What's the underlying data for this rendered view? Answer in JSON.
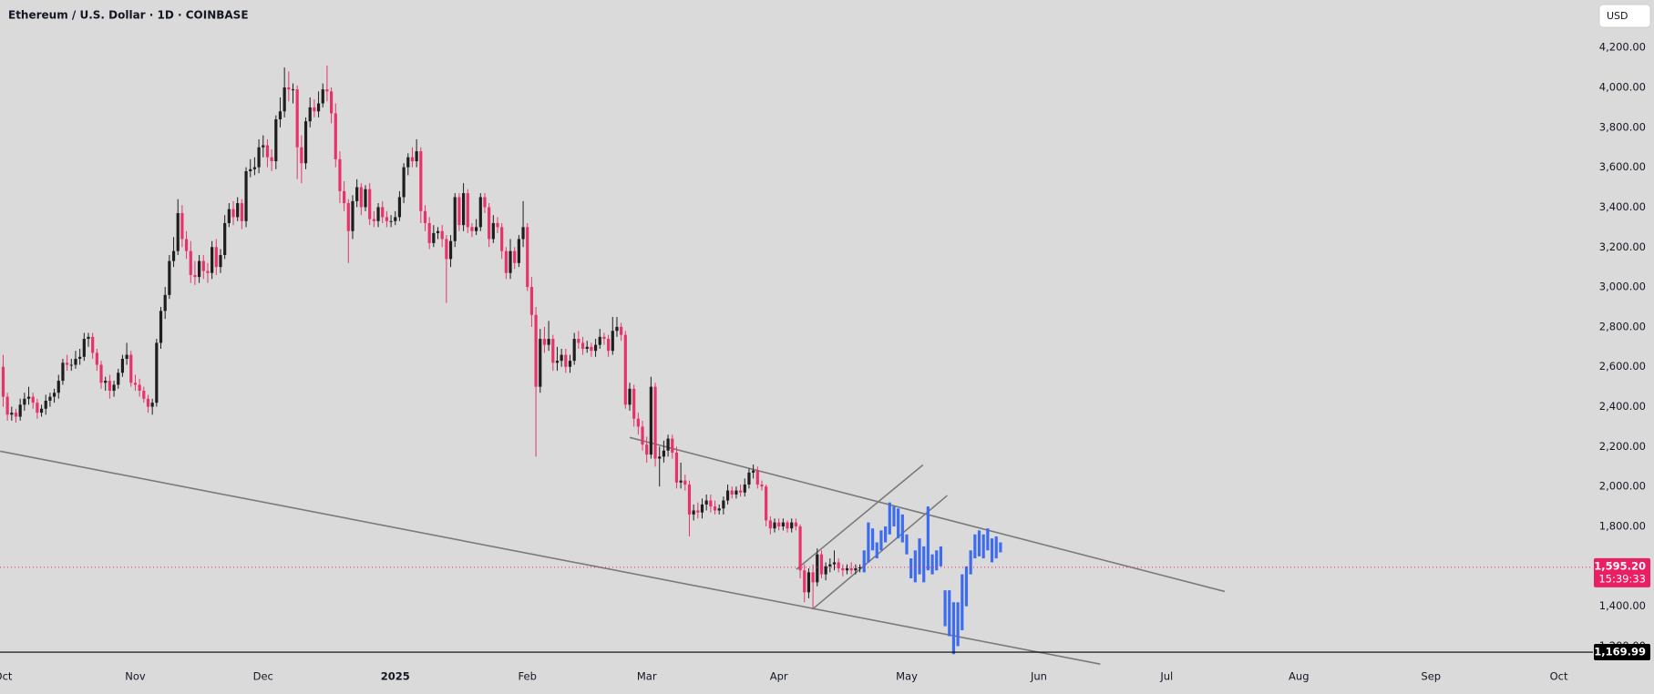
{
  "chart_data": {
    "type": "candlestick",
    "title": "Ethereum / U.S. Dollar · 1D · COINBASE",
    "currency": "USD",
    "x": [
      0,
      1,
      2,
      3,
      4,
      5,
      6,
      7,
      8,
      9,
      10,
      11,
      12,
      13,
      14,
      15,
      16,
      17,
      18,
      19,
      20,
      21,
      22,
      23,
      24,
      25,
      26,
      27,
      28,
      29,
      30,
      31,
      32,
      33,
      34,
      35,
      36,
      37,
      38,
      39,
      40,
      41,
      42,
      43,
      44,
      45,
      46,
      47,
      48,
      49,
      50,
      51,
      52,
      53,
      54,
      55,
      56,
      57,
      58,
      59,
      60,
      61,
      62,
      63,
      64,
      65,
      66,
      67,
      68,
      69,
      70,
      71,
      72,
      73,
      74,
      75,
      76,
      77,
      78,
      79,
      80,
      81,
      82,
      83,
      84,
      85,
      86,
      87,
      88,
      89,
      90,
      91,
      92,
      93,
      94,
      95,
      96,
      97,
      98,
      99,
      100,
      101,
      102,
      103,
      104,
      105,
      106,
      107,
      108,
      109,
      110,
      111,
      112,
      113,
      114,
      115,
      116,
      117,
      118,
      119,
      120,
      121,
      122,
      123,
      124,
      125,
      126,
      127,
      128,
      129,
      130,
      131,
      132,
      133,
      134,
      135,
      136,
      137,
      138,
      139,
      140,
      141,
      142,
      143,
      144,
      145,
      146,
      147,
      148,
      149,
      150,
      151,
      152,
      153,
      154,
      155,
      156,
      157,
      158,
      159,
      160,
      161,
      162,
      163,
      164,
      165,
      166,
      167,
      168,
      169,
      170,
      171,
      172,
      173,
      174,
      175,
      176,
      177,
      178,
      179,
      180,
      181,
      182,
      183,
      184,
      185,
      186,
      187,
      188,
      189,
      190,
      191,
      192,
      193,
      194,
      195,
      196,
      197,
      198,
      199,
      200,
      201
    ],
    "open": [
      2600,
      2450,
      2360,
      2370,
      2350,
      2410,
      2440,
      2450,
      2420,
      2370,
      2390,
      2430,
      2450,
      2470,
      2530,
      2620,
      2610,
      2610,
      2640,
      2650,
      2740,
      2750,
      2670,
      2610,
      2520,
      2530,
      2480,
      2510,
      2570,
      2640,
      2660,
      2520,
      2510,
      2480,
      2440,
      2400,
      2420,
      2720,
      2880,
      2960,
      3130,
      3180,
      3370,
      3240,
      3180,
      3060,
      3050,
      3130,
      3080,
      3070,
      3200,
      3100,
      3160,
      3320,
      3390,
      3350,
      3420,
      3330,
      3580,
      3590,
      3600,
      3700,
      3710,
      3650,
      3630,
      3840,
      3880,
      4000,
      3990,
      3990,
      3700,
      3620,
      3830,
      3900,
      3880,
      3920,
      3990,
      3980,
      3870,
      3640,
      3480,
      3420,
      3280,
      3430,
      3500,
      3400,
      3490,
      3340,
      3330,
      3400,
      3350,
      3330,
      3330,
      3350,
      3450,
      3600,
      3650,
      3630,
      3680,
      3380,
      3320,
      3220,
      3270,
      3280,
      3240,
      3140,
      3230,
      3450,
      3310,
      3470,
      3300,
      3280,
      3300,
      3450,
      3400,
      3240,
      3320,
      3300,
      3180,
      3070,
      3180,
      3120,
      3240,
      3300,
      3000,
      2860,
      2500,
      2740,
      2710,
      2740,
      2620,
      2630,
      2660,
      2600,
      2630,
      2740,
      2720,
      2690,
      2700,
      2680,
      2710,
      2750,
      2740,
      2680,
      2780,
      2800,
      2760,
      2410,
      2490,
      2340,
      2300,
      2210,
      2160,
      2500,
      2140,
      2150,
      2180,
      2240,
      2170,
      2020,
      2030,
      2010,
      1860,
      1880,
      1870,
      1910,
      1930,
      1900,
      1880,
      1890,
      1930,
      1980,
      1960,
      1980,
      1970,
      2010,
      2070,
      2080,
      2010,
      2000,
      1830,
      1790,
      1820,
      1800,
      1820,
      1790,
      1820,
      1800,
      1580,
      1470,
      1570,
      1520,
      1660,
      1560,
      1600,
      1610,
      1620,
      1590,
      1580,
      1590,
      1580,
      1590
    ],
    "high": [
      2660,
      2470,
      2400,
      2390,
      2440,
      2470,
      2500,
      2470,
      2440,
      2410,
      2460,
      2470,
      2490,
      2560,
      2640,
      2660,
      2640,
      2680,
      2690,
      2770,
      2770,
      2770,
      2690,
      2630,
      2550,
      2560,
      2530,
      2590,
      2660,
      2720,
      2680,
      2560,
      2540,
      2500,
      2460,
      2440,
      2740,
      2900,
      3000,
      3160,
      3250,
      3440,
      3410,
      3280,
      3230,
      3130,
      3160,
      3160,
      3120,
      3230,
      3240,
      3190,
      3360,
      3420,
      3430,
      3450,
      3440,
      3600,
      3640,
      3650,
      3740,
      3760,
      3740,
      3690,
      3860,
      3950,
      4100,
      4080,
      4020,
      4010,
      3760,
      3850,
      3950,
      3940,
      3980,
      4020,
      4110,
      4000,
      3920,
      3680,
      3530,
      3440,
      3460,
      3540,
      3520,
      3510,
      3520,
      3380,
      3420,
      3430,
      3380,
      3360,
      3380,
      3480,
      3620,
      3670,
      3700,
      3740,
      3700,
      3410,
      3350,
      3310,
      3300,
      3310,
      3260,
      3260,
      3470,
      3470,
      3520,
      3490,
      3320,
      3340,
      3470,
      3470,
      3420,
      3360,
      3350,
      3320,
      3200,
      3240,
      3200,
      3260,
      3430,
      3320,
      3050,
      2900,
      2790,
      2800,
      2830,
      2760,
      2700,
      2690,
      2690,
      2660,
      2770,
      2780,
      2750,
      2730,
      2720,
      2740,
      2790,
      2770,
      2760,
      2850,
      2850,
      2820,
      2780,
      2520,
      2510,
      2370,
      2330,
      2250,
      2550,
      2520,
      2200,
      2230,
      2260,
      2260,
      2200,
      2120,
      2060,
      2030,
      1910,
      1920,
      1940,
      1960,
      1960,
      1930,
      1910,
      1950,
      2010,
      2000,
      2000,
      2010,
      2040,
      2090,
      2110,
      2100,
      2030,
      2010,
      1850,
      1840,
      1840,
      1840,
      1830,
      1840,
      1840,
      1810,
      1610,
      1590,
      1610,
      1690,
      1680,
      1620,
      1640,
      1680,
      1640,
      1610,
      1610,
      1620,
      1610,
      1610
    ],
    "low": [
      2400,
      2330,
      2330,
      2320,
      2330,
      2380,
      2410,
      2390,
      2340,
      2350,
      2360,
      2400,
      2420,
      2440,
      2510,
      2580,
      2580,
      2590,
      2610,
      2630,
      2700,
      2640,
      2580,
      2490,
      2480,
      2440,
      2450,
      2490,
      2550,
      2610,
      2500,
      2480,
      2450,
      2420,
      2370,
      2360,
      2400,
      2690,
      2840,
      2940,
      3100,
      3160,
      3200,
      3140,
      3020,
      3010,
      3020,
      3040,
      3020,
      3040,
      3060,
      3070,
      3140,
      3300,
      3310,
      3330,
      3290,
      3300,
      3550,
      3560,
      3570,
      3650,
      3600,
      3580,
      3590,
      3800,
      3850,
      3930,
      3920,
      3540,
      3520,
      3590,
      3800,
      3850,
      3850,
      3900,
      3930,
      3820,
      3600,
      3420,
      3380,
      3120,
      3240,
      3400,
      3360,
      3380,
      3310,
      3300,
      3300,
      3320,
      3300,
      3300,
      3310,
      3330,
      3420,
      3560,
      3600,
      3600,
      3320,
      3280,
      3190,
      3200,
      3240,
      3200,
      2920,
      3100,
      3200,
      3280,
      3280,
      3270,
      3250,
      3260,
      3280,
      3370,
      3200,
      3220,
      3270,
      3140,
      3040,
      3040,
      3090,
      3100,
      3200,
      2980,
      2800,
      2150,
      2470,
      2670,
      2680,
      2580,
      2580,
      2600,
      2570,
      2570,
      2610,
      2690,
      2660,
      2670,
      2650,
      2650,
      2690,
      2710,
      2650,
      2660,
      2750,
      2730,
      2390,
      2380,
      2300,
      2260,
      2180,
      2120,
      2140,
      2100,
      2000,
      2120,
      2150,
      2140,
      1990,
      1990,
      1980,
      1750,
      1830,
      1840,
      1840,
      1880,
      1870,
      1860,
      1860,
      1860,
      1910,
      1940,
      1940,
      1950,
      1950,
      1990,
      2040,
      1990,
      1980,
      1800,
      1760,
      1770,
      1780,
      1780,
      1770,
      1770,
      1780,
      1540,
      1420,
      1440,
      1385,
      1500,
      1540,
      1530,
      1570,
      1580,
      1570,
      1550,
      1560,
      1560,
      1560,
      1570
    ],
    "close": [
      2450,
      2360,
      2370,
      2350,
      2410,
      2440,
      2450,
      2420,
      2370,
      2390,
      2430,
      2450,
      2470,
      2530,
      2620,
      2610,
      2610,
      2640,
      2650,
      2740,
      2750,
      2670,
      2610,
      2520,
      2530,
      2480,
      2510,
      2570,
      2640,
      2660,
      2520,
      2510,
      2480,
      2440,
      2400,
      2420,
      2720,
      2880,
      2960,
      3130,
      3180,
      3370,
      3240,
      3180,
      3060,
      3050,
      3130,
      3080,
      3070,
      3200,
      3100,
      3160,
      3320,
      3390,
      3350,
      3420,
      3330,
      3580,
      3590,
      3600,
      3700,
      3710,
      3650,
      3630,
      3840,
      3880,
      4000,
      3990,
      3990,
      3700,
      3620,
      3830,
      3900,
      3880,
      3920,
      3990,
      3980,
      3870,
      3640,
      3480,
      3420,
      3280,
      3430,
      3500,
      3400,
      3490,
      3340,
      3330,
      3400,
      3350,
      3330,
      3330,
      3350,
      3450,
      3600,
      3650,
      3630,
      3680,
      3380,
      3320,
      3220,
      3270,
      3280,
      3240,
      3140,
      3230,
      3450,
      3310,
      3470,
      3300,
      3280,
      3300,
      3450,
      3400,
      3240,
      3320,
      3300,
      3180,
      3070,
      3180,
      3120,
      3240,
      3300,
      3000,
      2860,
      2500,
      2740,
      2710,
      2740,
      2620,
      2630,
      2660,
      2600,
      2630,
      2740,
      2720,
      2690,
      2700,
      2680,
      2710,
      2750,
      2740,
      2680,
      2780,
      2800,
      2760,
      2410,
      2490,
      2340,
      2300,
      2210,
      2160,
      2500,
      2140,
      2150,
      2180,
      2240,
      2170,
      2020,
      2030,
      2010,
      1860,
      1880,
      1870,
      1910,
      1930,
      1900,
      1880,
      1890,
      1930,
      1980,
      1960,
      1980,
      1970,
      2010,
      2070,
      2080,
      2010,
      2000,
      1830,
      1790,
      1820,
      1800,
      1820,
      1790,
      1820,
      1800,
      1580,
      1470,
      1570,
      1520,
      1660,
      1560,
      1600,
      1610,
      1620,
      1590,
      1580,
      1590,
      1580,
      1590,
      1595.2
    ],
    "up_color": "#1e1e1e",
    "down_color": "#e8336a",
    "projection": {
      "color": "#3d6cf0",
      "x": [
        202,
        203,
        204,
        205,
        206,
        207,
        208,
        209,
        210,
        211,
        212,
        213,
        214,
        215,
        216,
        217,
        218,
        219,
        220,
        221,
        222,
        223,
        224,
        225,
        226,
        227,
        228,
        229,
        230,
        231,
        232,
        233,
        234
      ],
      "low": [
        1570,
        1620,
        1680,
        1640,
        1680,
        1720,
        1760,
        1800,
        1740,
        1720,
        1660,
        1540,
        1520,
        1560,
        1520,
        1580,
        1560,
        1580,
        1600,
        1300,
        1250,
        1160,
        1200,
        1280,
        1400,
        1560,
        1640,
        1650,
        1640,
        1680,
        1620,
        1640,
        1670
      ],
      "high": [
        1680,
        1820,
        1790,
        1720,
        1780,
        1800,
        1920,
        1900,
        1890,
        1860,
        1760,
        1640,
        1680,
        1740,
        1700,
        1900,
        1660,
        1680,
        1700,
        1480,
        1480,
        1420,
        1420,
        1560,
        1600,
        1680,
        1760,
        1780,
        1760,
        1790,
        1740,
        1750,
        1720
      ]
    },
    "trendlines": {
      "color": "#7a7a7a",
      "lines": [
        {
          "x": [
            -0.7,
            257.4
          ],
          "y": [
            2177,
            1110
          ]
        },
        {
          "x": [
            147,
            286.6
          ],
          "y": [
            2246,
            1474
          ]
        },
        {
          "x": [
            186.1,
            215.8
          ],
          "y": [
            1585,
            2108
          ]
        },
        {
          "x": [
            189.9,
            221.5
          ],
          "y": [
            1385,
            1955
          ]
        }
      ]
    },
    "xlim": [
      -0.74,
      373
    ],
    "ylim": [
      1152,
      4438
    ],
    "xticks": [
      {
        "value": 0,
        "label": "Oct"
      },
      {
        "value": 31,
        "label": "Nov"
      },
      {
        "value": 61,
        "label": "Dec"
      },
      {
        "value": 92,
        "label": "2025"
      },
      {
        "value": 123,
        "label": "Feb"
      },
      {
        "value": 151,
        "label": "Mar"
      },
      {
        "value": 182,
        "label": "Apr"
      },
      {
        "value": 212,
        "label": "May"
      },
      {
        "value": 243,
        "label": "Jun"
      },
      {
        "value": 273,
        "label": "Jul"
      },
      {
        "value": 304,
        "label": "Aug"
      },
      {
        "value": 335,
        "label": "Sep"
      },
      {
        "value": 365,
        "label": "Oct"
      }
    ],
    "yticks": [
      {
        "value": 1200,
        "label": "1,200.00"
      },
      {
        "value": 1400,
        "label": "1,400.00"
      },
      {
        "value": 1600,
        "label": "1,600.00"
      },
      {
        "value": 1800,
        "label": "1,800.00"
      },
      {
        "value": 2000,
        "label": "2,000.00"
      },
      {
        "value": 2200,
        "label": "2,200.00"
      },
      {
        "value": 2400,
        "label": "2,400.00"
      },
      {
        "value": 2600,
        "label": "2,600.00"
      },
      {
        "value": 2800,
        "label": "2,800.00"
      },
      {
        "value": 3000,
        "label": "3,000.00"
      },
      {
        "value": 3200,
        "label": "3,200.00"
      },
      {
        "value": 3400,
        "label": "3,400.00"
      },
      {
        "value": 3600,
        "label": "3,600.00"
      },
      {
        "value": 3800,
        "label": "3,800.00"
      },
      {
        "value": 4000,
        "label": "4,000.00"
      },
      {
        "value": 4200,
        "label": "4,200.00"
      }
    ],
    "grid": true,
    "last_price": {
      "value": 1595.2,
      "label": "1,595.20"
    },
    "countdown": "15:39:33",
    "last_price_color": "#e91e63",
    "marker_price": {
      "value": 1169.99,
      "label": "1,169.99"
    }
  }
}
